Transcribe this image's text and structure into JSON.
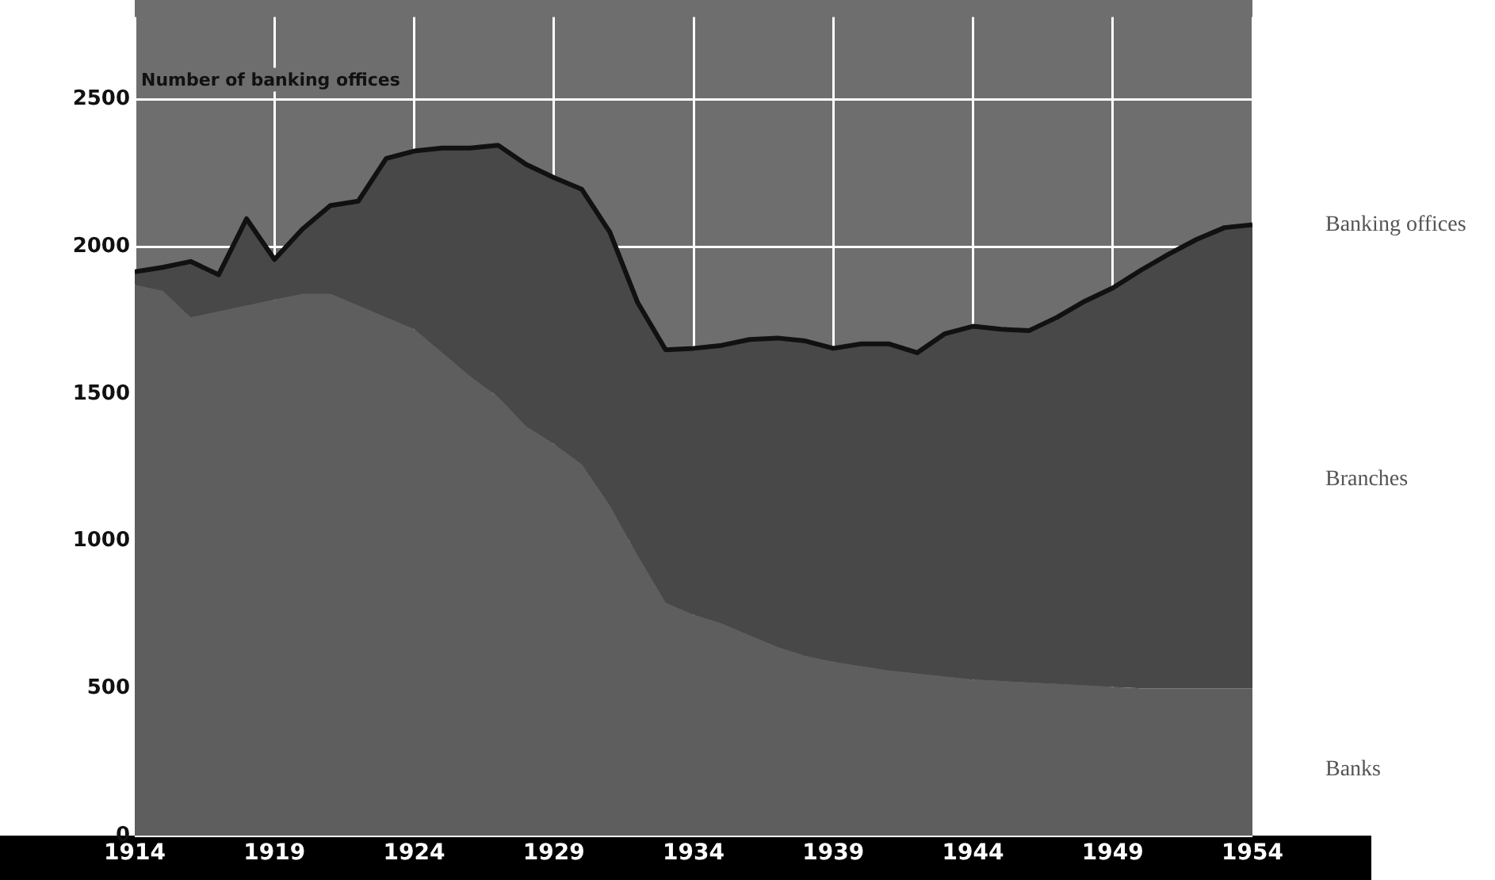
{
  "chart_data": {
    "type": "area",
    "stacked": true,
    "ylabel": "Number of banking offices",
    "x": [
      1914,
      1915,
      1916,
      1917,
      1918,
      1919,
      1920,
      1921,
      1922,
      1923,
      1924,
      1925,
      1926,
      1927,
      1928,
      1929,
      1930,
      1931,
      1932,
      1933,
      1934,
      1935,
      1936,
      1937,
      1938,
      1939,
      1940,
      1941,
      1942,
      1943,
      1944,
      1945,
      1946,
      1947,
      1948,
      1949,
      1950,
      1951,
      1952,
      1953,
      1954
    ],
    "series": [
      {
        "name": "Banks",
        "color": "#5e5e5e",
        "values": [
          1870,
          1850,
          1760,
          1780,
          1800,
          1820,
          1840,
          1840,
          1800,
          1760,
          1720,
          1640,
          1560,
          1490,
          1390,
          1330,
          1260,
          1120,
          950,
          790,
          750,
          720,
          680,
          640,
          610,
          590,
          575,
          560,
          550,
          540,
          530,
          525,
          520,
          515,
          510,
          505,
          500,
          500,
          500,
          500,
          500
        ]
      },
      {
        "name": "Branches",
        "color": "#484848",
        "values": [
          45,
          80,
          190,
          125,
          295,
          137,
          220,
          300,
          355,
          540,
          605,
          695,
          775,
          855,
          890,
          905,
          935,
          930,
          860,
          860,
          905,
          945,
          1005,
          1050,
          1070,
          1065,
          1095,
          1110,
          1090,
          1165,
          1200,
          1195,
          1195,
          1245,
          1305,
          1355,
          1420,
          1475,
          1525,
          1565,
          1575
        ]
      }
    ],
    "xlim": [
      1914,
      1954
    ],
    "xticks": [
      1914,
      1919,
      1924,
      1929,
      1934,
      1939,
      1944,
      1949,
      1954
    ],
    "ylim": [
      0,
      2780
    ],
    "yticks": [
      0,
      500,
      1000,
      1500,
      2000,
      2500
    ],
    "grid": true,
    "annotations": [
      "Banking offices"
    ]
  }
}
